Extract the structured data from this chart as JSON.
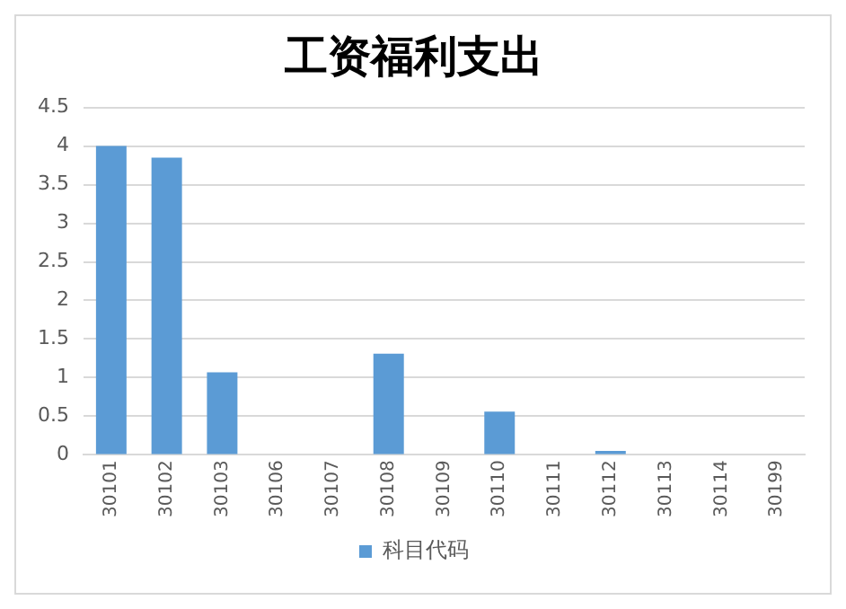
{
  "chart_data": {
    "type": "bar",
    "title": "工资福利支出",
    "categories": [
      "30101",
      "30102",
      "30103",
      "30106",
      "30107",
      "30108",
      "30109",
      "30110",
      "30111",
      "30112",
      "30113",
      "30114",
      "30199"
    ],
    "series": [
      {
        "name": "科目代码",
        "color": "#5b9bd5",
        "values": [
          4.0,
          3.85,
          1.07,
          0,
          0,
          1.31,
          0,
          0.56,
          0,
          0.05,
          0,
          0,
          0
        ]
      }
    ],
    "ylim": [
      0,
      4.5
    ],
    "yticks": [
      0,
      0.5,
      1,
      1.5,
      2,
      2.5,
      3,
      3.5,
      4,
      4.5
    ],
    "grid": "y",
    "legend": "bottom"
  }
}
